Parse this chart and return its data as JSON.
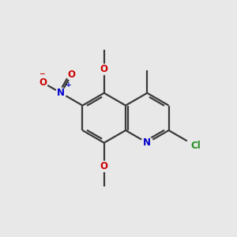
{
  "background_color": "#e8e8e8",
  "bond_color": "#3a3a3a",
  "N_color": "#0000cc",
  "O_color": "#cc0000",
  "Cl_color": "#228B22",
  "C_color": "#3a3a3a",
  "lw": 1.6,
  "fs": 8.5,
  "BL": 1.0,
  "xlim": [
    0,
    10
  ],
  "ylim": [
    0,
    10
  ]
}
